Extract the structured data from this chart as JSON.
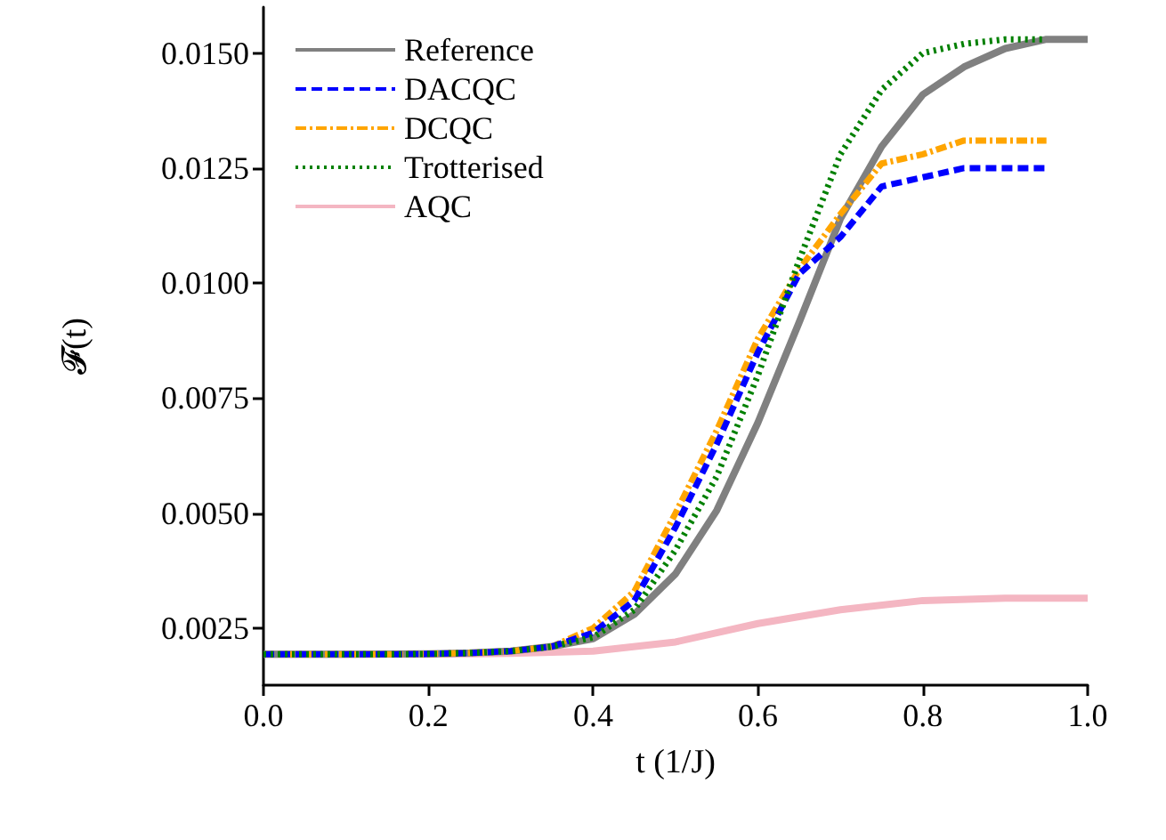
{
  "chart_data": {
    "type": "line",
    "xlabel": "t (1/J)",
    "ylabel": "𝓕(t)",
    "xlim": [
      0,
      1
    ],
    "xticks": [
      {
        "value": 0,
        "label": "0.0"
      },
      {
        "value": 0.2,
        "label": "0.2"
      },
      {
        "value": 0.4,
        "label": "0.4"
      },
      {
        "value": 0.6,
        "label": "0.6"
      },
      {
        "value": 0.8,
        "label": "0.8"
      },
      {
        "value": 1,
        "label": "1.0"
      }
    ],
    "ylim": [
      0.00126,
      0.016
    ],
    "yticks": [
      {
        "value": 0.0025,
        "label": "0.0025"
      },
      {
        "value": 0.005,
        "label": "0.0050"
      },
      {
        "value": 0.0075,
        "label": "0.0075"
      },
      {
        "value": 0.01,
        "label": "0.0100"
      },
      {
        "value": 0.0125,
        "label": "0.0125"
      },
      {
        "value": 0.015,
        "label": "0.0150"
      }
    ],
    "x": [
      0,
      0.05,
      0.1,
      0.15,
      0.2,
      0.25,
      0.3,
      0.35,
      0.4,
      0.45,
      0.5,
      0.55,
      0.6,
      0.65,
      0.7,
      0.75,
      0.8,
      0.85,
      0.9,
      0.95
    ],
    "grid": false,
    "legend": "top left",
    "marker": "none",
    "series": [
      {
        "name": "Reference",
        "color": "#808080",
        "line_style": "solid",
        "x": [
          0,
          0.1,
          0.2,
          0.25,
          0.3,
          0.35,
          0.4,
          0.45,
          0.5,
          0.55,
          0.6,
          0.65,
          0.7,
          0.75,
          0.8,
          0.85,
          0.9,
          0.95,
          1
        ],
        "values": [
          0.00193,
          0.00193,
          0.00194,
          0.00196,
          0.002,
          0.0021,
          0.00227,
          0.0028,
          0.00368,
          0.00506,
          0.00697,
          0.00915,
          0.0114,
          0.01297,
          0.0141,
          0.0147,
          0.0151,
          0.0153,
          0.0153
        ]
      },
      {
        "name": "DACQC",
        "color": "#0000ff",
        "line_style": "dashed",
        "values": [
          0.00193,
          0.00193,
          0.00193,
          0.00193,
          0.00194,
          0.00196,
          0.002,
          0.0021,
          0.0024,
          0.0031,
          0.0047,
          0.0065,
          0.0085,
          0.0102,
          0.011,
          0.0121,
          0.0123,
          0.0125,
          0.0125,
          0.0125
        ]
      },
      {
        "name": "DCQC",
        "color": "#ffa500",
        "line_style": "dashdot",
        "values": [
          0.00193,
          0.00193,
          0.00193,
          0.00193,
          0.00194,
          0.00196,
          0.002,
          0.0021,
          0.0025,
          0.0033,
          0.005,
          0.0068,
          0.0088,
          0.0103,
          0.0115,
          0.0126,
          0.0128,
          0.0131,
          0.0131,
          0.0131
        ]
      },
      {
        "name": "Trotterised",
        "color": "#008000",
        "line_style": "dotted",
        "values": [
          0.00193,
          0.00193,
          0.00193,
          0.00193,
          0.00194,
          0.00196,
          0.002,
          0.0021,
          0.0023,
          0.0029,
          0.0042,
          0.0058,
          0.008,
          0.0105,
          0.0128,
          0.0142,
          0.015,
          0.0152,
          0.0153,
          0.0153
        ]
      },
      {
        "name": "AQC",
        "color": "#f4b6c2",
        "line_style": "solid",
        "x": [
          0,
          0.1,
          0.2,
          0.3,
          0.4,
          0.5,
          0.6,
          0.7,
          0.8,
          0.9,
          1
        ],
        "values": [
          0.00193,
          0.00193,
          0.00193,
          0.00195,
          0.002,
          0.0022,
          0.0026,
          0.0029,
          0.0031,
          0.00315,
          0.00315
        ]
      }
    ]
  }
}
